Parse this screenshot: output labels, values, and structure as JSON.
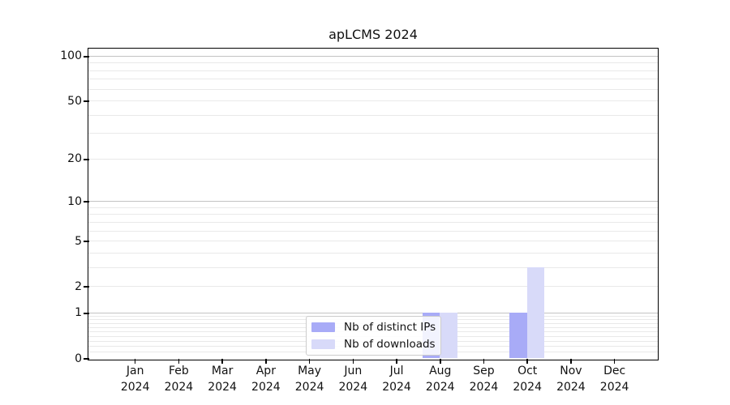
{
  "figure": {
    "background": "#ffffff"
  },
  "chart_data": {
    "type": "bar",
    "title": "apLCMS 2024",
    "categories": [
      "Jan 2024",
      "Feb 2024",
      "Mar 2024",
      "Apr 2024",
      "May 2024",
      "Jun 2024",
      "Jul 2024",
      "Aug 2024",
      "Sep 2024",
      "Oct 2024",
      "Nov 2024",
      "Dec 2024"
    ],
    "series": [
      {
        "name": "Nb of distinct IPs",
        "color": "#a8abf7",
        "values": [
          0,
          0,
          0,
          0,
          0,
          0,
          0,
          1,
          0,
          1,
          0,
          0
        ]
      },
      {
        "name": "Nb of downloads",
        "color": "#d8daf9",
        "values": [
          0,
          0,
          0,
          0,
          0,
          0,
          0,
          1,
          0,
          3,
          0,
          0
        ]
      }
    ],
    "y_axis": {
      "scale": "log1p",
      "ticks": [
        0,
        1,
        2,
        5,
        10,
        20,
        50,
        100
      ],
      "ylim": [
        0,
        112
      ]
    },
    "legend": {
      "position": "lower center"
    },
    "grid": {
      "axis": "y",
      "major_color": "#c3c3c3",
      "minor_color": "#e9e9e9",
      "major_at": [
        1,
        10,
        100
      ]
    }
  }
}
